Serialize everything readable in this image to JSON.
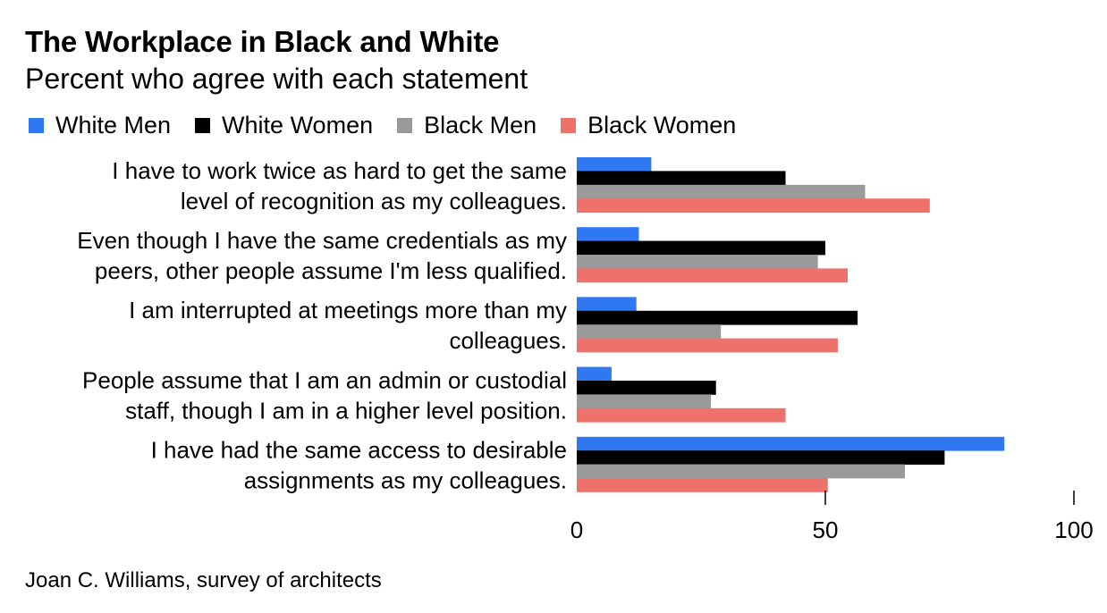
{
  "title": "The Workplace in Black and White",
  "subtitle": "Percent who agree with each statement",
  "source": "Joan C. Williams, survey of architects",
  "chart_data": {
    "type": "bar",
    "orientation": "horizontal",
    "categories": [
      [
        "I have to work twice as hard to get the same",
        "level of recognition as my colleagues."
      ],
      [
        "Even though I have the same credentials as my",
        "peers, other people assume I'm less qualified."
      ],
      [
        "I am interrupted at meetings more than my",
        "colleagues."
      ],
      [
        "People assume that I am an admin or custodial",
        "staff, though I am in a higher level position."
      ],
      [
        "I have had the same access to desirable",
        "assignments as my colleagues."
      ]
    ],
    "series": [
      {
        "name": "White Men",
        "color": "#2f78f2",
        "values": [
          15,
          12.5,
          12,
          7,
          86
        ]
      },
      {
        "name": "White Women",
        "color": "#000000",
        "values": [
          42,
          50,
          56.5,
          28,
          74
        ]
      },
      {
        "name": "Black Men",
        "color": "#9a9a9a",
        "values": [
          58,
          48.5,
          29,
          27,
          66
        ]
      },
      {
        "name": "Black Women",
        "color": "#ee716b",
        "values": [
          71,
          54.5,
          52.5,
          42,
          50.5
        ]
      }
    ],
    "xlim": [
      0,
      100
    ],
    "xticks": [
      0,
      50,
      100
    ],
    "xtick_labels": [
      "0",
      "50",
      "100"
    ],
    "legend_position": "top-left",
    "grid": false
  }
}
